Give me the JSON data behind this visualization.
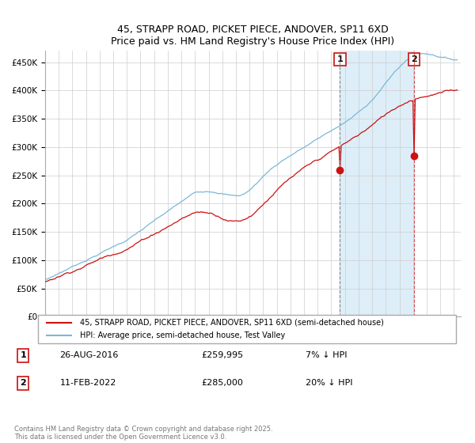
{
  "title_line1": "45, STRAPP ROAD, PICKET PIECE, ANDOVER, SP11 6XD",
  "title_line2": "Price paid vs. HM Land Registry's House Price Index (HPI)",
  "xlim_start": 1995,
  "xlim_end": 2025.5,
  "ylim": [
    0,
    470000
  ],
  "yticks": [
    0,
    50000,
    100000,
    150000,
    200000,
    250000,
    300000,
    350000,
    400000,
    450000
  ],
  "ytick_labels": [
    "£0",
    "£50K",
    "£100K",
    "£150K",
    "£200K",
    "£250K",
    "£300K",
    "£350K",
    "£400K",
    "£450K"
  ],
  "hpi_color": "#7ab8d8",
  "price_color": "#cc1111",
  "legend_label1": "45, STRAPP ROAD, PICKET PIECE, ANDOVER, SP11 6XD (semi-detached house)",
  "legend_label2": "HPI: Average price, semi-detached house, Test Valley",
  "sale1_year": 2016.63,
  "sale1_price": 259995,
  "sale2_year": 2022.08,
  "sale2_price": 285000,
  "sale1_label": "1",
  "sale1_date": "26-AUG-2016",
  "sale1_price_str": "£259,995",
  "sale1_hpi": "7% ↓ HPI",
  "sale2_label": "2",
  "sale2_date": "11-FEB-2022",
  "sale2_price_str": "£285,000",
  "sale2_hpi": "20% ↓ HPI",
  "footer": "Contains HM Land Registry data © Crown copyright and database right 2025.\nThis data is licensed under the Open Government Licence v3.0.",
  "background_color": "#ffffff",
  "grid_color": "#cccccc",
  "shade_color": "#ddeef8"
}
